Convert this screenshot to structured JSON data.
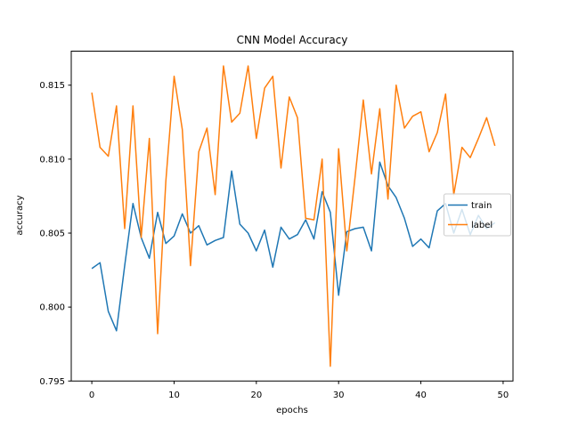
{
  "page": {
    "background": "#ffffff"
  },
  "chart_data": {
    "type": "line",
    "title": "CNN Model Accuracy",
    "xlabel": "epochs",
    "ylabel": "accuracy",
    "grid": false,
    "xlim": [
      -2.5,
      51.2
    ],
    "ylim": [
      0.795,
      0.8173
    ],
    "xticks": [
      0,
      10,
      20,
      30,
      40,
      50
    ],
    "ytick_values": [
      0.795,
      0.8,
      0.805,
      0.81,
      0.815
    ],
    "ytick_labels": [
      "0.795",
      "0.800",
      "0.805",
      "0.810",
      "0.815"
    ],
    "legend": {
      "position": "center right",
      "entries": [
        "train",
        "label"
      ]
    },
    "x": [
      0,
      1,
      2,
      3,
      4,
      5,
      6,
      7,
      8,
      9,
      10,
      11,
      12,
      13,
      14,
      15,
      16,
      17,
      18,
      19,
      20,
      21,
      22,
      23,
      24,
      25,
      26,
      27,
      28,
      29,
      30,
      31,
      32,
      33,
      34,
      35,
      36,
      37,
      38,
      39,
      40,
      41,
      42,
      43,
      44,
      45,
      46,
      47,
      48,
      49
    ],
    "series": [
      {
        "name": "train",
        "color": "#1f77b4",
        "values": [
          0.8026,
          0.803,
          0.7997,
          0.7984,
          0.8028,
          0.807,
          0.8047,
          0.8033,
          0.8064,
          0.8043,
          0.8048,
          0.8063,
          0.805,
          0.8055,
          0.8042,
          0.8045,
          0.8047,
          0.8092,
          0.8056,
          0.805,
          0.8038,
          0.8052,
          0.8027,
          0.8054,
          0.8046,
          0.8049,
          0.8059,
          0.8046,
          0.8078,
          0.8064,
          0.8008,
          0.8051,
          0.8053,
          0.8054,
          0.8038,
          0.8098,
          0.8082,
          0.8074,
          0.806,
          0.8041,
          0.8046,
          0.804,
          0.8065,
          0.807,
          0.805,
          0.8066,
          0.8049,
          0.8062,
          0.8053,
          0.8057
        ]
      },
      {
        "name": "label",
        "color": "#ff7f0e",
        "values": [
          0.8145,
          0.8108,
          0.8102,
          0.8136,
          0.8053,
          0.8136,
          0.8047,
          0.8114,
          0.7982,
          0.8085,
          0.8156,
          0.812,
          0.8028,
          0.8105,
          0.8121,
          0.8076,
          0.8163,
          0.8125,
          0.8131,
          0.8163,
          0.8114,
          0.8148,
          0.8156,
          0.8094,
          0.8142,
          0.8128,
          0.806,
          0.8059,
          0.81,
          0.796,
          0.8107,
          0.8038,
          0.8088,
          0.814,
          0.809,
          0.8134,
          0.8073,
          0.815,
          0.8121,
          0.8129,
          0.8132,
          0.8105,
          0.8118,
          0.8144,
          0.8076,
          0.8108,
          0.8101,
          0.8114,
          0.8128,
          0.8109
        ]
      }
    ]
  }
}
